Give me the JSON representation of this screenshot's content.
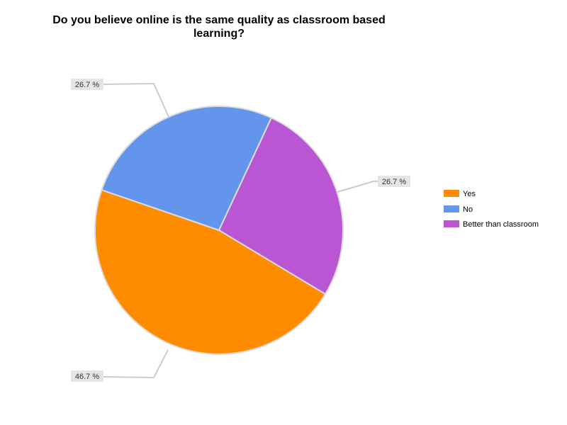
{
  "chart_data": {
    "type": "pie",
    "title": [
      "Do you believe online is the same quality as classroom based",
      "learning?"
    ],
    "categories": [
      "Yes",
      "No",
      "Better than classroom"
    ],
    "values": [
      46.7,
      26.7,
      26.7
    ],
    "labels": [
      "46.7 %",
      "26.7 %",
      "26.7 %"
    ],
    "colors": [
      "#ff8c00",
      "#6495ed",
      "#ba55d3"
    ],
    "legend_position": "right"
  }
}
